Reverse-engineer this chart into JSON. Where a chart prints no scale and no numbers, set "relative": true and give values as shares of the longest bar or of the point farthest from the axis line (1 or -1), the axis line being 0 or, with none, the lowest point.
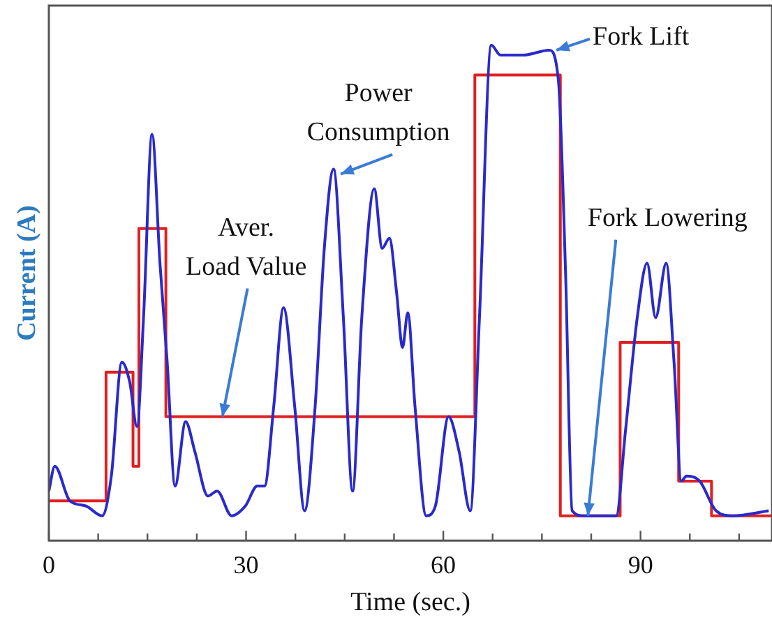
{
  "chart_data": {
    "type": "line",
    "xlabel": "Time (sec.)",
    "ylabel": "Current (A)",
    "relative": true,
    "xlim": [
      0,
      110
    ],
    "xticks": [
      0,
      {
        "value": 7.5,
        "label": null
      },
      {
        "value": 15,
        "label": null
      },
      {
        "value": 22.5,
        "label": null
      },
      30,
      {
        "value": 37.5,
        "label": null
      },
      {
        "value": 45,
        "label": null
      },
      {
        "value": 52.5,
        "label": null
      },
      60,
      {
        "value": 67.5,
        "label": null
      },
      {
        "value": 75,
        "label": null
      },
      {
        "value": 82.5,
        "label": null
      },
      90,
      {
        "value": 97.5,
        "label": null
      },
      {
        "value": 105,
        "label": null
      }
    ],
    "grid": false,
    "legend": false,
    "marker": "none",
    "line_style": "solid",
    "series": [
      {
        "type": "line",
        "color": "#2a2acc",
        "x": [
          0,
          0.9,
          3.2,
          5.6,
          8.1,
          9.5,
          11.1,
          12.3,
          13.4,
          14.4,
          15.7,
          16.9,
          18.0,
          19.2,
          20.8,
          22.2,
          24.2,
          25.6,
          27.8,
          29.9,
          31.7,
          32.8,
          34.2,
          35.7,
          37.4,
          38.9,
          40.5,
          41.9,
          43.3,
          44.8,
          46.2,
          47.6,
          49.5,
          50.7,
          51.8,
          52.9,
          53.8,
          54.6,
          55.7,
          57.4,
          58.8,
          60.8,
          62.4,
          64.1,
          65.5,
          67.3,
          68.7,
          72.2,
          76.1,
          77.5,
          78.6,
          79.6,
          81.4,
          86.3,
          87.7,
          89.5,
          91.0,
          92.3,
          93.9,
          95.1,
          96.2,
          97.0,
          99.0,
          101.5,
          104.0,
          109.5
        ],
        "values": [
          0.1,
          0.15,
          0.08,
          0.07,
          0.05,
          0.13,
          0.36,
          0.32,
          0.23,
          0.45,
          0.82,
          0.56,
          0.36,
          0.11,
          0.24,
          0.18,
          0.09,
          0.1,
          0.05,
          0.07,
          0.11,
          0.11,
          0.27,
          0.47,
          0.27,
          0.06,
          0.27,
          0.59,
          0.75,
          0.45,
          0.1,
          0.45,
          0.71,
          0.59,
          0.61,
          0.5,
          0.39,
          0.46,
          0.27,
          0.05,
          0.07,
          0.25,
          0.18,
          0.06,
          0.45,
          1,
          0.98,
          0.98,
          0.99,
          0.93,
          0.54,
          0.06,
          0.05,
          0.05,
          0.22,
          0.45,
          0.56,
          0.45,
          0.56,
          0.36,
          0.12,
          0.13,
          0.12,
          0.06,
          0.05,
          0.06
        ]
      },
      {
        "type": "step",
        "color": "#e02020",
        "x": [
          0,
          8.7,
          12.8,
          13.7,
          17.8,
          64.8,
          77.8,
          86.9,
          95.8,
          100.8,
          110
        ],
        "values": [
          0.08,
          0.34,
          0.15,
          0.63,
          0.25,
          0.94,
          0.05,
          0.4,
          0.12,
          0.05,
          0.05
        ]
      }
    ],
    "annotations": [
      {
        "text": "Power\nConsumption",
        "x": 44.4,
        "y": 0.74
      },
      {
        "text": "Aver.\nLoad Value",
        "x": 26.4,
        "y": 0.25
      },
      {
        "text": "Fork Lift",
        "x": 77.2,
        "y": 0.99
      },
      {
        "text": "Fork Lowering",
        "x": 82,
        "y": 0.05
      }
    ]
  }
}
